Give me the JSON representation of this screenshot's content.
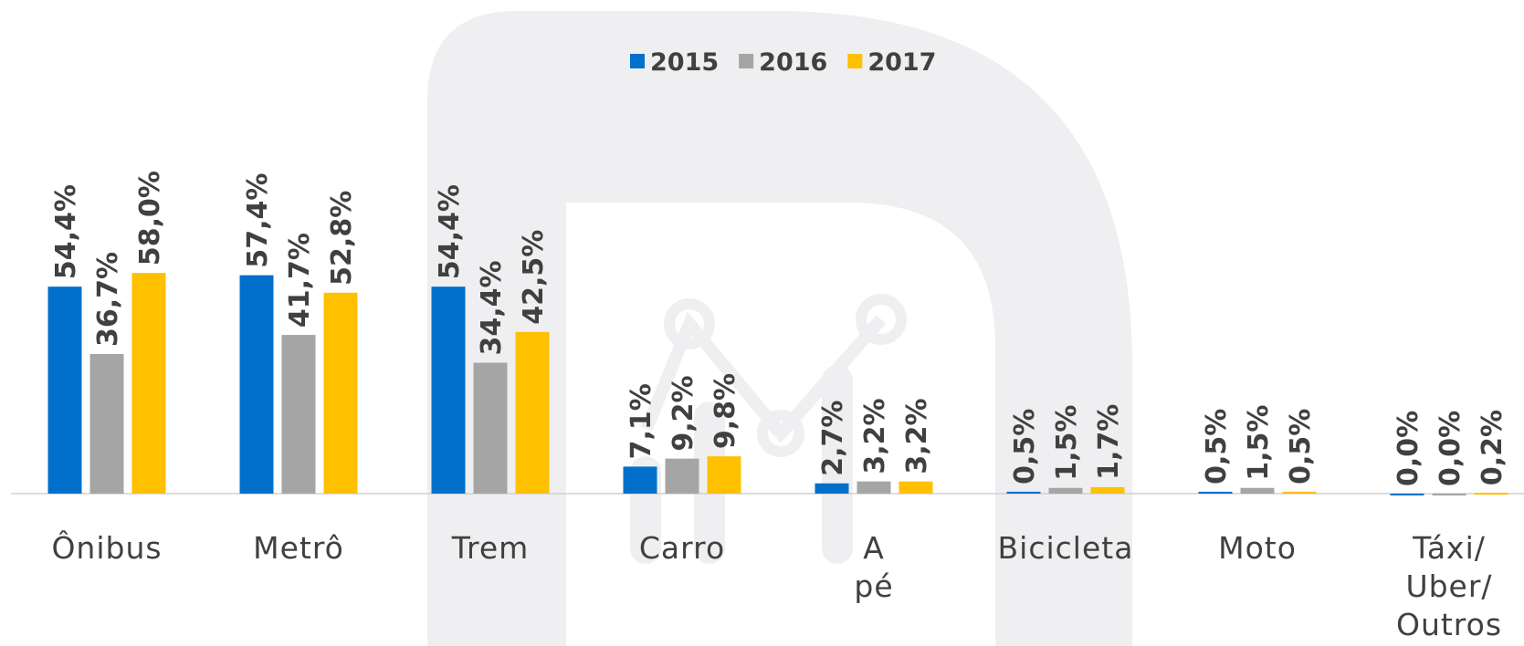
{
  "chart_data": {
    "type": "bar",
    "categories": [
      "Ônibus",
      "Metrô",
      "Trem",
      "Carro",
      "A pé",
      "Bicicleta",
      "Moto",
      "Táxi/ Uber/ Outros"
    ],
    "series": [
      {
        "name": "2015",
        "color": "#0070cc",
        "values": [
          54.4,
          57.4,
          54.4,
          7.1,
          2.7,
          0.5,
          0.5,
          0.0
        ],
        "value_labels": [
          "54,4%",
          "57,4%",
          "54,4%",
          "7,1%",
          "2,7%",
          "0,5%",
          "0,5%",
          "0,0%"
        ]
      },
      {
        "name": "2016",
        "color": "#a5a5a5",
        "values": [
          36.7,
          41.7,
          34.4,
          9.2,
          3.2,
          1.5,
          1.5,
          0.0
        ],
        "value_labels": [
          "36,7%",
          "41,7%",
          "34,4%",
          "9,2%",
          "3,2%",
          "1,5%",
          "1,5%",
          "0,0%"
        ]
      },
      {
        "name": "2017",
        "color": "#ffc000",
        "values": [
          58.0,
          52.8,
          42.5,
          9.8,
          3.2,
          1.7,
          0.5,
          0.2
        ],
        "value_labels": [
          "58,0%",
          "52,8%",
          "42,5%",
          "9,8%",
          "3,2%",
          "1,7%",
          "0,5%",
          "0,2%"
        ]
      }
    ],
    "legend_position": "top"
  }
}
